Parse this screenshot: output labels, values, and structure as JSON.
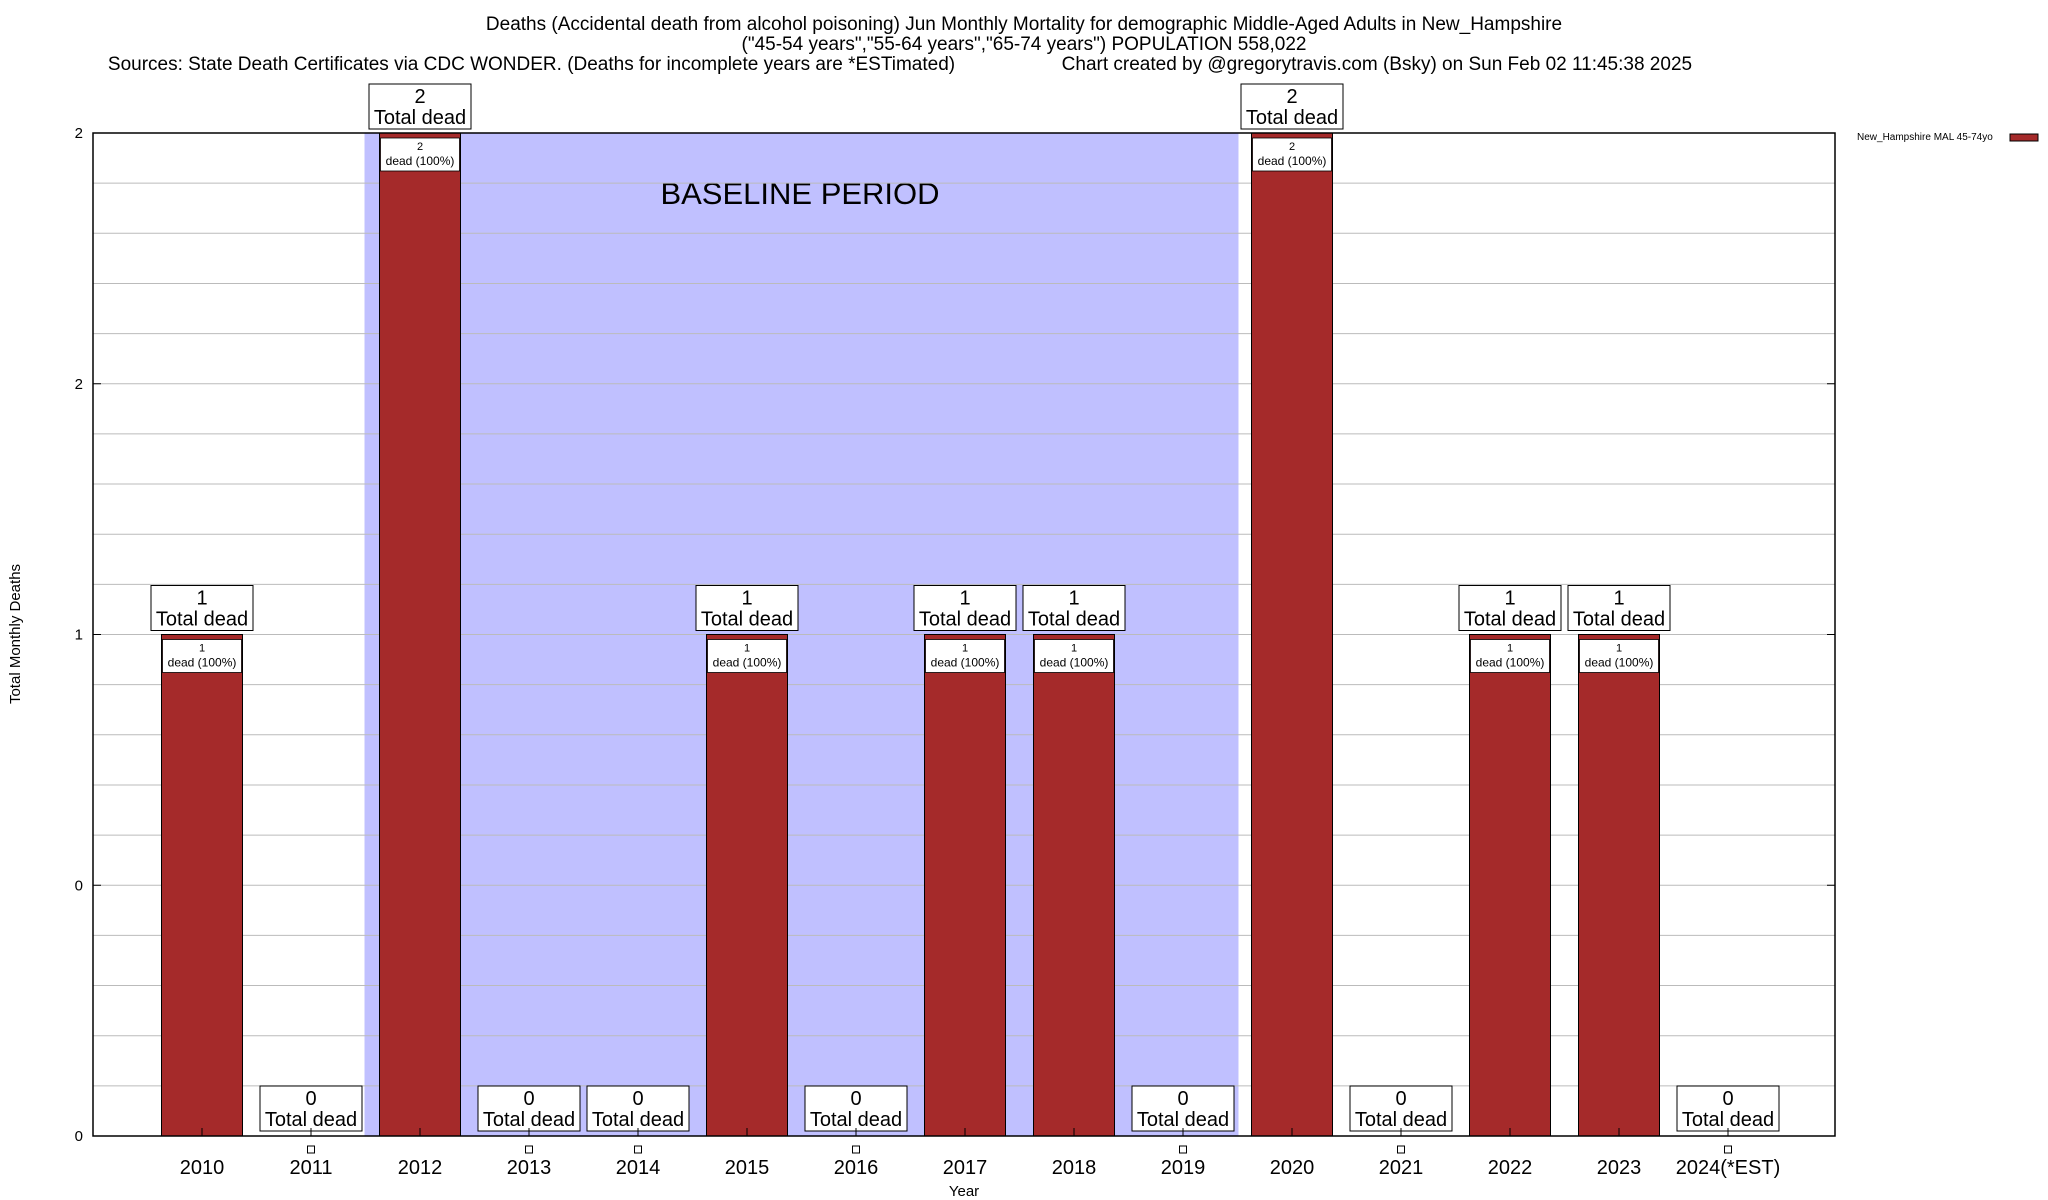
{
  "chart_data": {
    "type": "bar",
    "title_line1": "Deaths (Accidental death from alcohol poisoning) Jun Monthly Mortality for demographic Middle-Aged Adults in New_Hampshire",
    "title_line2": "(\"45-54 years\",\"55-64 years\",\"65-74 years\") POPULATION 558,022",
    "sources": "Sources: State Death Certificates via CDC WONDER. (Deaths for incomplete years are *ESTimated)",
    "credit": "Chart created by @gregorytravis.com (Bsky) on Sun Feb 02 11:45:38 2025",
    "xlabel": "Year",
    "ylabel": "Total Monthly Deaths",
    "ylim": [
      0,
      2
    ],
    "yticks": [
      {
        "value": 0,
        "label": "0"
      },
      {
        "value": 0.5,
        "label": "0"
      },
      {
        "value": 1,
        "label": "1"
      },
      {
        "value": 1.5,
        "label": "2"
      },
      {
        "value": 2,
        "label": "2"
      }
    ],
    "grid": true,
    "categories": [
      "2010",
      "2011",
      "2012",
      "2013",
      "2014",
      "2015",
      "2016",
      "2017",
      "2018",
      "2019",
      "2020",
      "2021",
      "2022",
      "2023",
      "2024(*EST)"
    ],
    "series": [
      {
        "name": "New_Hampshire MAL 45-74yo",
        "color": "#a52a2a",
        "values": [
          1,
          0,
          2,
          0,
          0,
          1,
          0,
          1,
          1,
          0,
          2,
          0,
          1,
          1,
          0
        ]
      }
    ],
    "total_label_suffix": "Total dead",
    "inner_labels": [
      {
        "count": "1",
        "pct": "dead (100%)"
      },
      null,
      {
        "count": "2",
        "pct": "dead (100%)"
      },
      null,
      null,
      {
        "count": "1",
        "pct": "dead (100%)"
      },
      null,
      {
        "count": "1",
        "pct": "dead (100%)"
      },
      {
        "count": "1",
        "pct": "dead (100%)"
      },
      null,
      {
        "count": "2",
        "pct": "dead (100%)"
      },
      null,
      {
        "count": "1",
        "pct": "dead (100%)"
      },
      {
        "count": "1",
        "pct": "dead (100%)"
      },
      null
    ],
    "baseline": {
      "label": "BASELINE PERIOD",
      "start": "2012",
      "end": "2019",
      "color": "#c0c0ff"
    },
    "legend": {
      "label": "New_Hampshire MAL 45-74yo",
      "placement": "top-right"
    }
  }
}
